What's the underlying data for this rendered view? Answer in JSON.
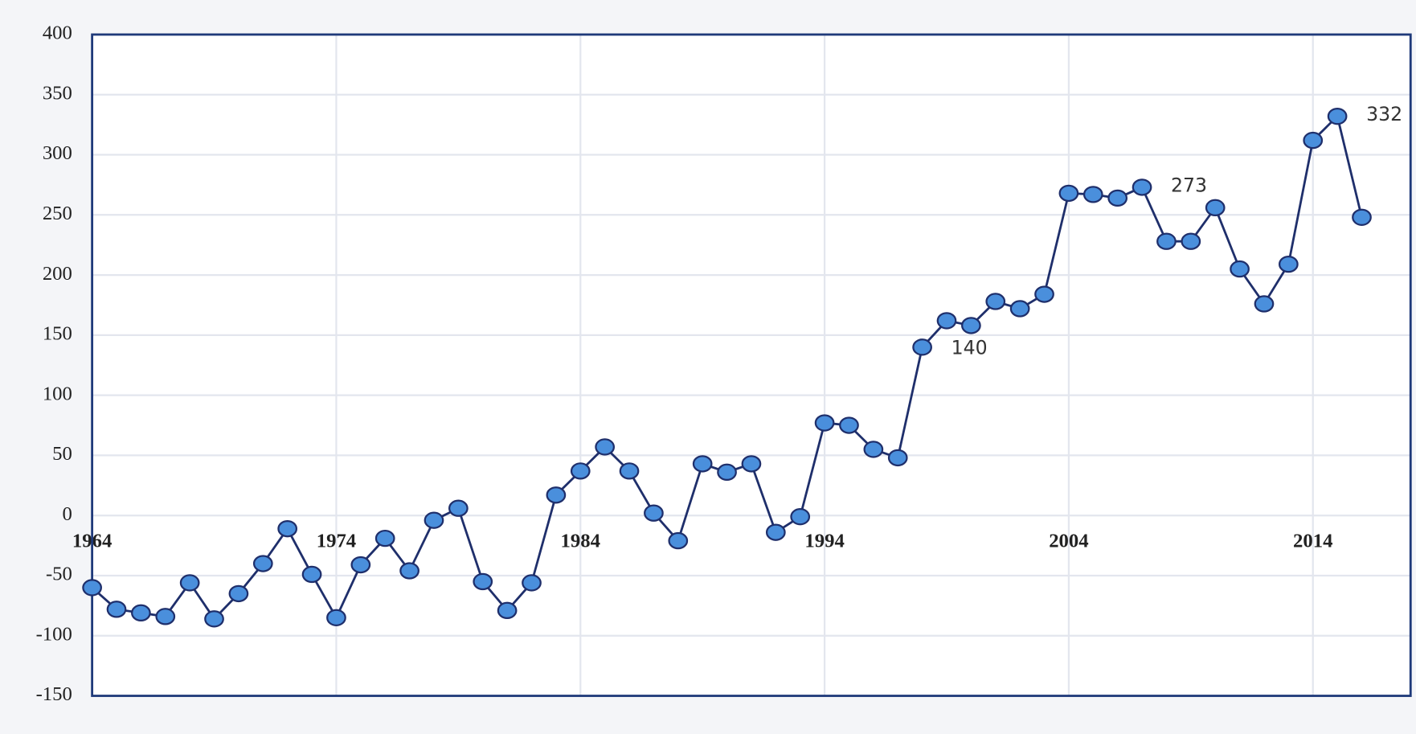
{
  "chart_data": {
    "type": "line",
    "x": [
      1964,
      1965,
      1966,
      1967,
      1968,
      1969,
      1970,
      1971,
      1972,
      1973,
      1974,
      1975,
      1976,
      1977,
      1978,
      1979,
      1980,
      1981,
      1982,
      1983,
      1984,
      1985,
      1986,
      1987,
      1988,
      1989,
      1990,
      1991,
      1992,
      1993,
      1994,
      1995,
      1996,
      1997,
      1998,
      1999,
      2000,
      2001,
      2002,
      2003,
      2004,
      2005,
      2006,
      2007,
      2008,
      2009,
      2010,
      2011,
      2012,
      2013,
      2014,
      2015,
      2016
    ],
    "series": [
      {
        "color": "#1f2f6b",
        "marker_color": "#4a8fdc",
        "values": [
          -60,
          -78,
          -81,
          -84,
          -56,
          -86,
          -65,
          -40,
          -11,
          -49,
          -85,
          -41,
          -19,
          -46,
          -4,
          6,
          -55,
          -79,
          -56,
          17,
          37,
          57,
          37,
          2,
          -21,
          43,
          36,
          43,
          -14,
          -1,
          77,
          75,
          55,
          48,
          140,
          162,
          158,
          178,
          172,
          184,
          268,
          267,
          264,
          273,
          228,
          228,
          256,
          205,
          176,
          209,
          312,
          332,
          248
        ],
        "value_labels": [
          null,
          null,
          null,
          null,
          null,
          null,
          null,
          null,
          null,
          null,
          null,
          null,
          null,
          null,
          null,
          null,
          null,
          null,
          null,
          null,
          null,
          null,
          null,
          null,
          null,
          null,
          null,
          null,
          null,
          null,
          null,
          null,
          null,
          null,
          "140",
          null,
          null,
          null,
          null,
          null,
          null,
          null,
          null,
          "273",
          null,
          null,
          null,
          null,
          null,
          null,
          null,
          "332",
          null
        ]
      }
    ],
    "xlim": [
      1964,
      2018
    ],
    "xticks": [
      1964,
      1974,
      1984,
      1994,
      2004,
      2014
    ],
    "ylim": [
      -150,
      400
    ],
    "yticks": [
      -150,
      -100,
      -50,
      0,
      50,
      100,
      150,
      200,
      250,
      300,
      350,
      400
    ],
    "grid": true
  }
}
